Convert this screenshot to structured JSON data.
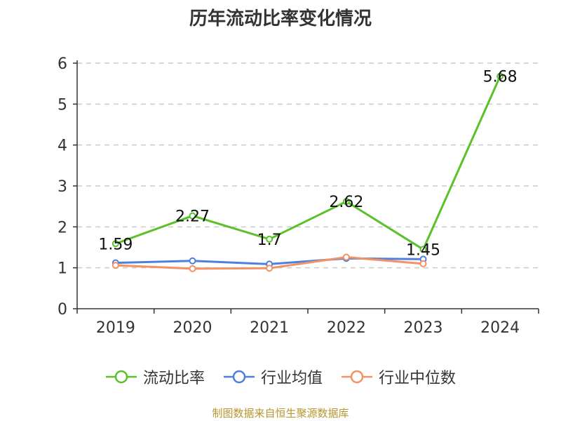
{
  "title": "历年流动比率变化情况",
  "footer": "制图数据来自恒生聚源数据库",
  "colors": {
    "current_ratio": "#5ac12b",
    "industry_mean": "#4e7fdc",
    "industry_median": "#f39263",
    "grid": "#cccccc",
    "axis": "#333333",
    "text": "#333333",
    "footer": "#b8962e"
  },
  "chart_data": {
    "type": "line",
    "title": "历年流动比率变化情况",
    "categories": [
      "2019",
      "2020",
      "2021",
      "2022",
      "2023",
      "2024"
    ],
    "ylim": [
      0,
      6
    ],
    "yticks": [
      0,
      1,
      2,
      3,
      4,
      5,
      6
    ],
    "grid": "horizontal dashed",
    "legend_position": "bottom",
    "series": [
      {
        "name": "流动比率",
        "color": "#5ac12b",
        "values": [
          1.59,
          2.27,
          1.7,
          2.62,
          1.45,
          5.68
        ],
        "labels": [
          "1.59",
          "2.27",
          "1.7",
          "2.62",
          "1.45",
          "5.68"
        ]
      },
      {
        "name": "行业均值",
        "color": "#4e7fdc",
        "values": [
          1.12,
          1.17,
          1.09,
          1.23,
          1.21,
          null
        ]
      },
      {
        "name": "行业中位数",
        "color": "#f39263",
        "values": [
          1.06,
          0.98,
          0.99,
          1.26,
          1.1,
          null
        ]
      }
    ]
  }
}
